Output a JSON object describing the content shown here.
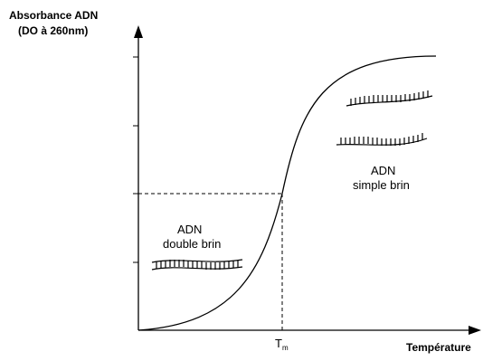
{
  "diagram": {
    "y_axis_label_line1": "Absorbance ADN",
    "y_axis_label_line2": "(DO à 260nm)",
    "x_axis_label": "Température",
    "tm_label": "T",
    "tm_subscript": "m",
    "left_region": {
      "line1": "ADN",
      "line2": "double brin"
    },
    "right_region": {
      "line1": "ADN",
      "line2": "simple brin"
    }
  }
}
